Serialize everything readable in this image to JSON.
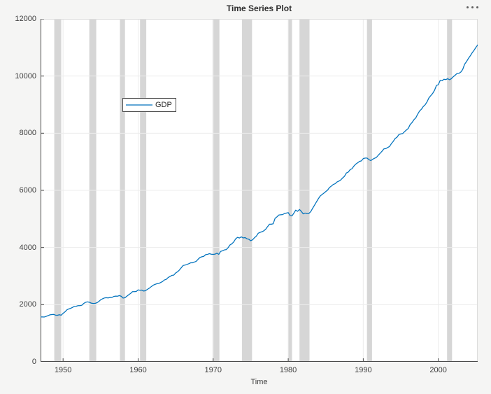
{
  "toolbar": {
    "ellipsis_icon": "•••"
  },
  "chart_data": {
    "type": "line",
    "title": "Time Series Plot",
    "xlabel": "Time",
    "ylabel": "",
    "grid": true,
    "legend_position": "upper-left-inside",
    "xlim": [
      1947,
      2005.25
    ],
    "ylim": [
      0,
      12000
    ],
    "xticks": [
      1950,
      1960,
      1970,
      1980,
      1990,
      2000
    ],
    "yticks": [
      0,
      2000,
      4000,
      6000,
      8000,
      10000,
      12000
    ],
    "colors": {
      "line": "#0072bd",
      "band": "#d6d6d6",
      "grid": "#ececec",
      "axis": "#4a4a4a",
      "box": "#dcdcdc",
      "text": "#3d3d3d",
      "figure_bg": "#f5f5f4",
      "plot_bg": "#ffffff"
    },
    "recession_bands": [
      [
        1948.83,
        1949.75
      ],
      [
        1953.5,
        1954.42
      ],
      [
        1957.58,
        1958.25
      ],
      [
        1960.25,
        1961.08
      ],
      [
        1969.92,
        1970.83
      ],
      [
        1973.83,
        1975.17
      ],
      [
        1980.0,
        1980.5
      ],
      [
        1981.5,
        1982.83
      ],
      [
        1990.5,
        1991.17
      ],
      [
        2001.17,
        2001.83
      ]
    ],
    "series": [
      {
        "name": "GDP",
        "color": "#0072bd",
        "x_start": 1947.0,
        "x_step": 0.25,
        "values": [
          1570,
          1569,
          1568,
          1591,
          1616,
          1645,
          1654,
          1658,
          1633,
          1628,
          1647,
          1630,
          1697,
          1747,
          1816,
          1849,
          1871,
          1903,
          1941,
          1944,
          1965,
          1966,
          1979,
          2044,
          2082,
          2098,
          2085,
          2053,
          2042,
          2044,
          2067,
          2108,
          2169,
          2204,
          2233,
          2245,
          2235,
          2253,
          2250,
          2287,
          2300,
          2295,
          2317,
          2293,
          2230,
          2243,
          2295,
          2348,
          2393,
          2455,
          2454,
          2462,
          2517,
          2505,
          2509,
          2476,
          2491,
          2538,
          2579,
          2631,
          2679,
          2709,
          2733,
          2740,
          2776,
          2809,
          2864,
          2886,
          2950,
          2985,
          3026,
          3033,
          3109,
          3150,
          3214,
          3292,
          3372,
          3384,
          3406,
          3434,
          3464,
          3464,
          3492,
          3518,
          3591,
          3652,
          3677,
          3692,
          3750,
          3761,
          3784,
          3766,
          3760,
          3767,
          3801,
          3760,
          3864,
          3886,
          3917,
          3928,
          3997,
          4092,
          4131,
          4199,
          4305,
          4355,
          4332,
          4373,
          4335,
          4348,
          4306,
          4289,
          4238,
          4269,
          4341,
          4398,
          4497,
          4530,
          4552,
          4585,
          4640,
          4731,
          4816,
          4815,
          4831,
          5021,
          5071,
          5137,
          5147,
          5152,
          5189,
          5205,
          5221,
          5116,
          5107,
          5202,
          5308,
          5266,
          5330,
          5263,
          5177,
          5205,
          5185,
          5190,
          5254,
          5372,
          5478,
          5591,
          5700,
          5798,
          5854,
          5902,
          5957,
          6008,
          6102,
          6149,
          6207,
          6232,
          6292,
          6323,
          6365,
          6435,
          6493,
          6607,
          6639,
          6724,
          6759,
          6849,
          6918,
          6964,
          7013,
          7031,
          7112,
          7130,
          7131,
          7077,
          7041,
          7087,
          7121,
          7154,
          7228,
          7298,
          7370,
          7451,
          7460,
          7498,
          7536,
          7637,
          7715,
          7816,
          7860,
          7952,
          7974,
          7988,
          8053,
          8112,
          8169,
          8303,
          8373,
          8471,
          8536,
          8666,
          8774,
          8838,
          8936,
          8995,
          9099,
          9237,
          9316,
          9393,
          9502,
          9671,
          9696,
          9848,
          9837,
          9888,
          9876,
          9906,
          9871,
          9910,
          9977,
          10032,
          10091,
          10096,
          10139,
          10230,
          10411,
          10503,
          10613,
          10704,
          10809,
          10897,
          10999,
          11089
        ]
      }
    ]
  }
}
